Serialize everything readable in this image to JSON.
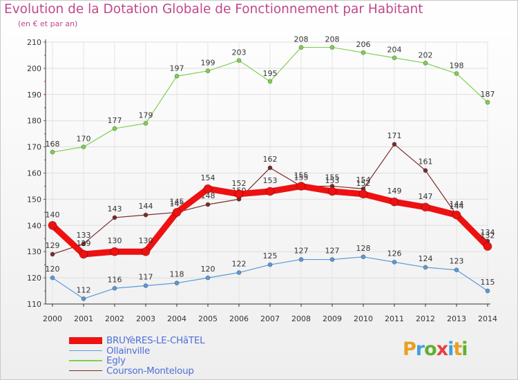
{
  "header": {
    "title": "Evolution de la Dotation Globale de Fonctionnement par Habitant",
    "subtitle": "(en € et par an)"
  },
  "logo": {
    "text": "Proxiti",
    "colors": [
      "#e8a020",
      "#40a0e0",
      "#60b030",
      "#e84040",
      "#40a0e0",
      "#e8a020",
      "#60b030"
    ]
  },
  "chart_data": {
    "type": "line",
    "title": "Evolution de la Dotation Globale de Fonctionnement par Habitant",
    "subtitle": "(en € et par an)",
    "xlabel": "",
    "ylabel": "",
    "ylim": [
      110,
      210
    ],
    "yticks": [
      110,
      120,
      130,
      140,
      150,
      160,
      170,
      180,
      190,
      200,
      210
    ],
    "grid": true,
    "legend_position": "bottom-left",
    "x": [
      "2000",
      "2001",
      "2002",
      "2003",
      "2004",
      "2005",
      "2006",
      "2007",
      "2008",
      "2009",
      "2010",
      "2011",
      "2012",
      "2013",
      "2014"
    ],
    "series": [
      {
        "name": "Egly",
        "color": "#7ed050",
        "values": [
          168,
          170,
          177,
          179,
          197,
          199,
          203,
          195,
          208,
          208,
          206,
          204,
          202,
          198,
          187
        ]
      },
      {
        "name": "Ollainville",
        "color": "#5a9ad8",
        "values": [
          120,
          112,
          116,
          117,
          118,
          120,
          122,
          125,
          127,
          127,
          128,
          126,
          124,
          123,
          115
        ]
      },
      {
        "name": "Courson-Monteloup",
        "color": "#7a2a2a",
        "values": [
          129,
          133,
          143,
          144,
          145,
          148,
          150,
          162,
          155,
          155,
          154,
          171,
          161,
          144,
          134
        ]
      },
      {
        "name": "BRUYèRES-LE-CHâTEL",
        "color": "#ee1111",
        "values": [
          140,
          129,
          130,
          130,
          145,
          154,
          152,
          153,
          155,
          153,
          152,
          149,
          147,
          144,
          132
        ]
      }
    ]
  }
}
